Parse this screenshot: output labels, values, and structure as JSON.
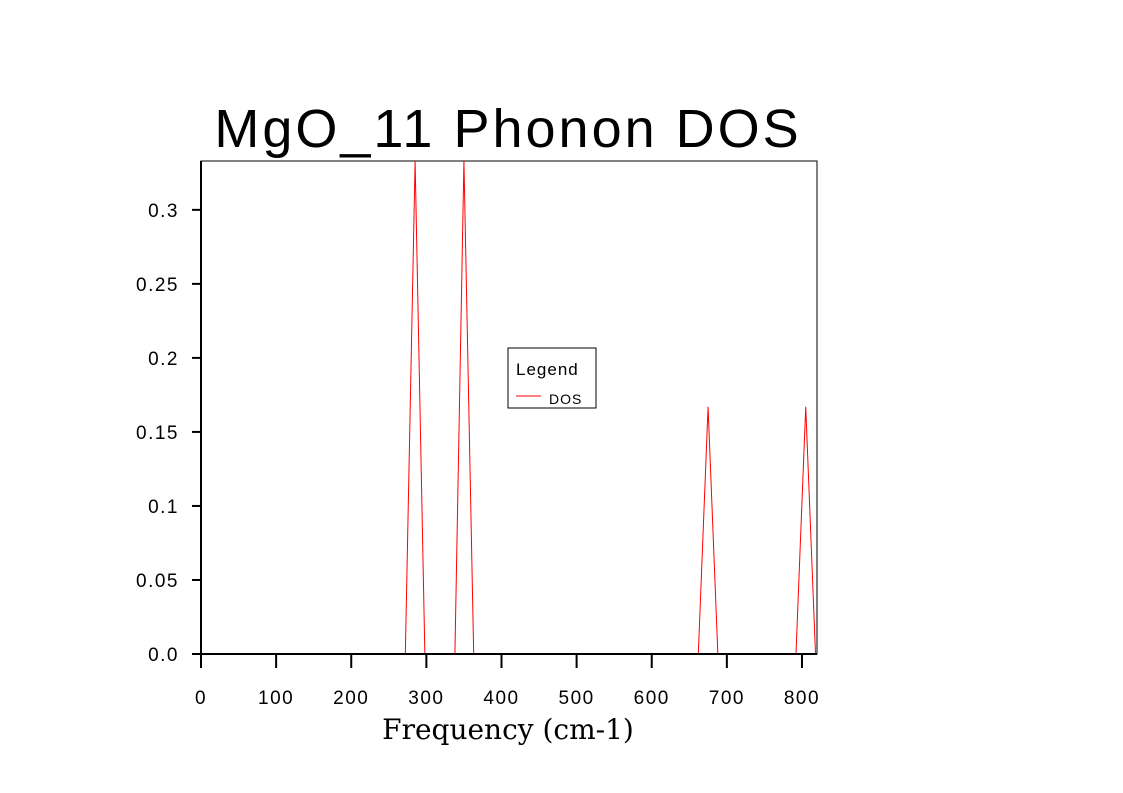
{
  "chart_data": {
    "type": "line",
    "title": "MgO_11 Phonon DOS",
    "xlabel": "Frequency (cm-1)",
    "ylabel": "",
    "xlim": [
      0,
      820
    ],
    "ylim": [
      0,
      0.333
    ],
    "x_ticks": [
      0,
      100,
      200,
      300,
      400,
      500,
      600,
      700,
      800
    ],
    "x_tick_labels": [
      "0",
      "100",
      "200",
      "300",
      "400",
      "500",
      "600",
      "700",
      "800"
    ],
    "y_ticks": [
      0,
      0.05,
      0.1,
      0.15,
      0.2,
      0.25,
      0.3
    ],
    "y_tick_labels": [
      "0.0",
      "0.05",
      "0.1",
      "0.15",
      "0.2",
      "0.25",
      "0.3"
    ],
    "grid": false,
    "legend": {
      "title": "Legend",
      "position": "center",
      "entries": [
        "DOS"
      ]
    },
    "series": [
      {
        "name": "DOS",
        "color": "#ff0000",
        "x": [
          0,
          272,
          285,
          298,
          338,
          350,
          363,
          662,
          675,
          688,
          792,
          805,
          818
        ],
        "y": [
          0,
          0,
          0.333,
          0,
          0,
          0.333,
          0,
          0,
          0.167,
          0,
          0,
          0.167,
          0
        ]
      }
    ]
  }
}
